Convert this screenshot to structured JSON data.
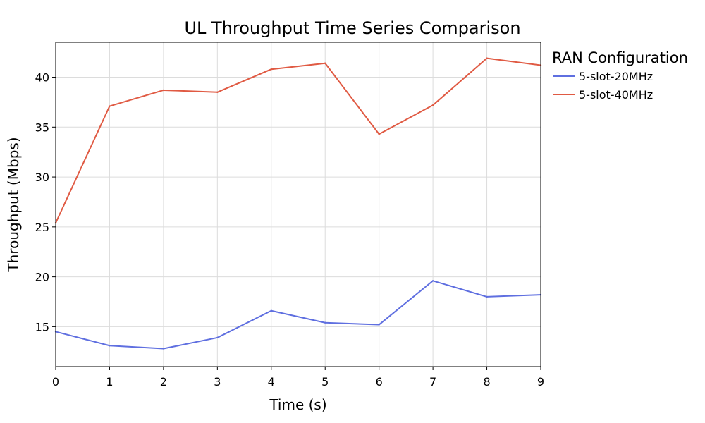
{
  "chart_data": {
    "type": "line",
    "title": "UL Throughput Time Series Comparison",
    "xlabel": "Time (s)",
    "ylabel": "Throughput (Mbps)",
    "x": [
      0,
      1,
      2,
      3,
      4,
      5,
      6,
      7,
      8,
      9
    ],
    "xlim": [
      0,
      9
    ],
    "ylim": [
      11,
      43.5
    ],
    "xticks": [
      0,
      1,
      2,
      3,
      4,
      5,
      6,
      7,
      8,
      9
    ],
    "yticks": [
      15,
      20,
      25,
      30,
      35,
      40
    ],
    "grid": true,
    "legend": {
      "title": "RAN Configuration",
      "placement": "outside-right"
    },
    "series": [
      {
        "name": "5-slot-20MHz",
        "color": "#5f6fe0",
        "values": [
          14.5,
          13.1,
          12.8,
          13.9,
          16.6,
          15.4,
          15.2,
          19.6,
          18.0,
          18.2
        ]
      },
      {
        "name": "5-slot-40MHz",
        "color": "#e05a43",
        "values": [
          25.4,
          37.1,
          38.7,
          38.5,
          40.8,
          41.4,
          34.3,
          37.2,
          41.9,
          41.2
        ]
      }
    ]
  }
}
